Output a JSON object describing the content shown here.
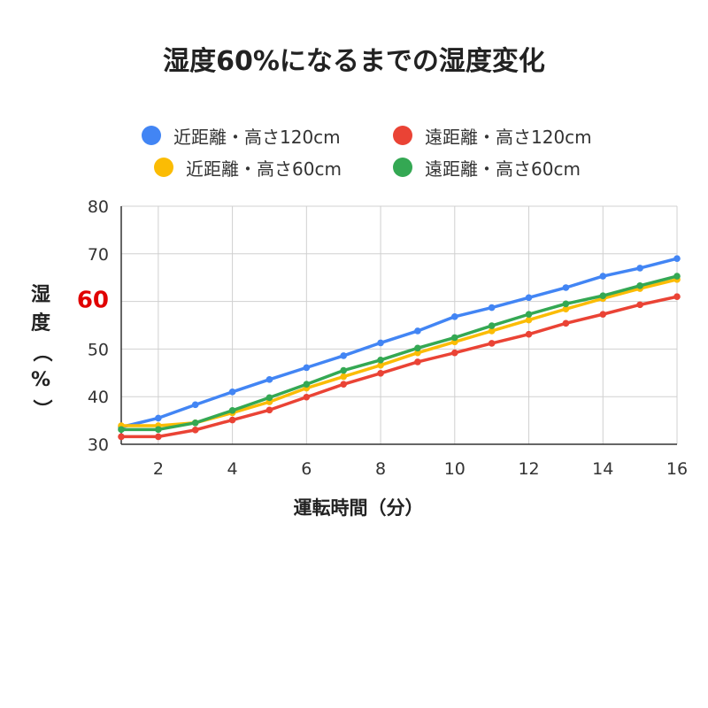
{
  "chart_data": {
    "type": "line",
    "title": "湿度60%になるまでの湿度変化",
    "xlabel": "運転時間（分）",
    "ylabel": [
      "湿",
      "度",
      "（",
      "%",
      "）"
    ],
    "highlight_tick": {
      "value": 60,
      "label": "60",
      "color": "#e00000"
    },
    "xlim": [
      1,
      16
    ],
    "ylim": [
      30,
      80
    ],
    "x_ticks": [
      2,
      4,
      6,
      8,
      10,
      12,
      14,
      16
    ],
    "y_ticks": [
      30,
      40,
      50,
      60,
      70,
      80
    ],
    "grid": true,
    "legend_position": "top",
    "x": [
      1,
      2,
      3,
      4,
      5,
      6,
      7,
      8,
      9,
      10,
      11,
      12,
      13,
      14,
      15,
      16
    ],
    "series": [
      {
        "name": "近距離・高さ120cm",
        "color": "#4285f4",
        "values": [
          33.6,
          35.5,
          38.3,
          41.0,
          43.6,
          46.1,
          48.6,
          51.3,
          53.8,
          56.8,
          58.7,
          60.8,
          62.9,
          65.3,
          67.0,
          69.0
        ]
      },
      {
        "name": "遠距離・高さ120cm",
        "color": "#ea4335",
        "values": [
          31.6,
          31.6,
          33.0,
          35.1,
          37.2,
          39.9,
          42.6,
          44.9,
          47.3,
          49.2,
          51.2,
          53.1,
          55.4,
          57.3,
          59.3,
          61.0
        ]
      },
      {
        "name": "近距離・高さ60cm",
        "color": "#fbbc04",
        "values": [
          33.9,
          33.9,
          34.5,
          36.6,
          38.9,
          41.8,
          44.2,
          46.6,
          49.2,
          51.5,
          53.8,
          56.1,
          58.4,
          60.6,
          62.7,
          64.6
        ]
      },
      {
        "name": "遠距離・高さ60cm",
        "color": "#34a853",
        "values": [
          33.1,
          33.1,
          34.5,
          37.1,
          39.8,
          42.6,
          45.5,
          47.7,
          50.2,
          52.4,
          54.9,
          57.3,
          59.5,
          61.2,
          63.3,
          65.3
        ]
      }
    ]
  }
}
